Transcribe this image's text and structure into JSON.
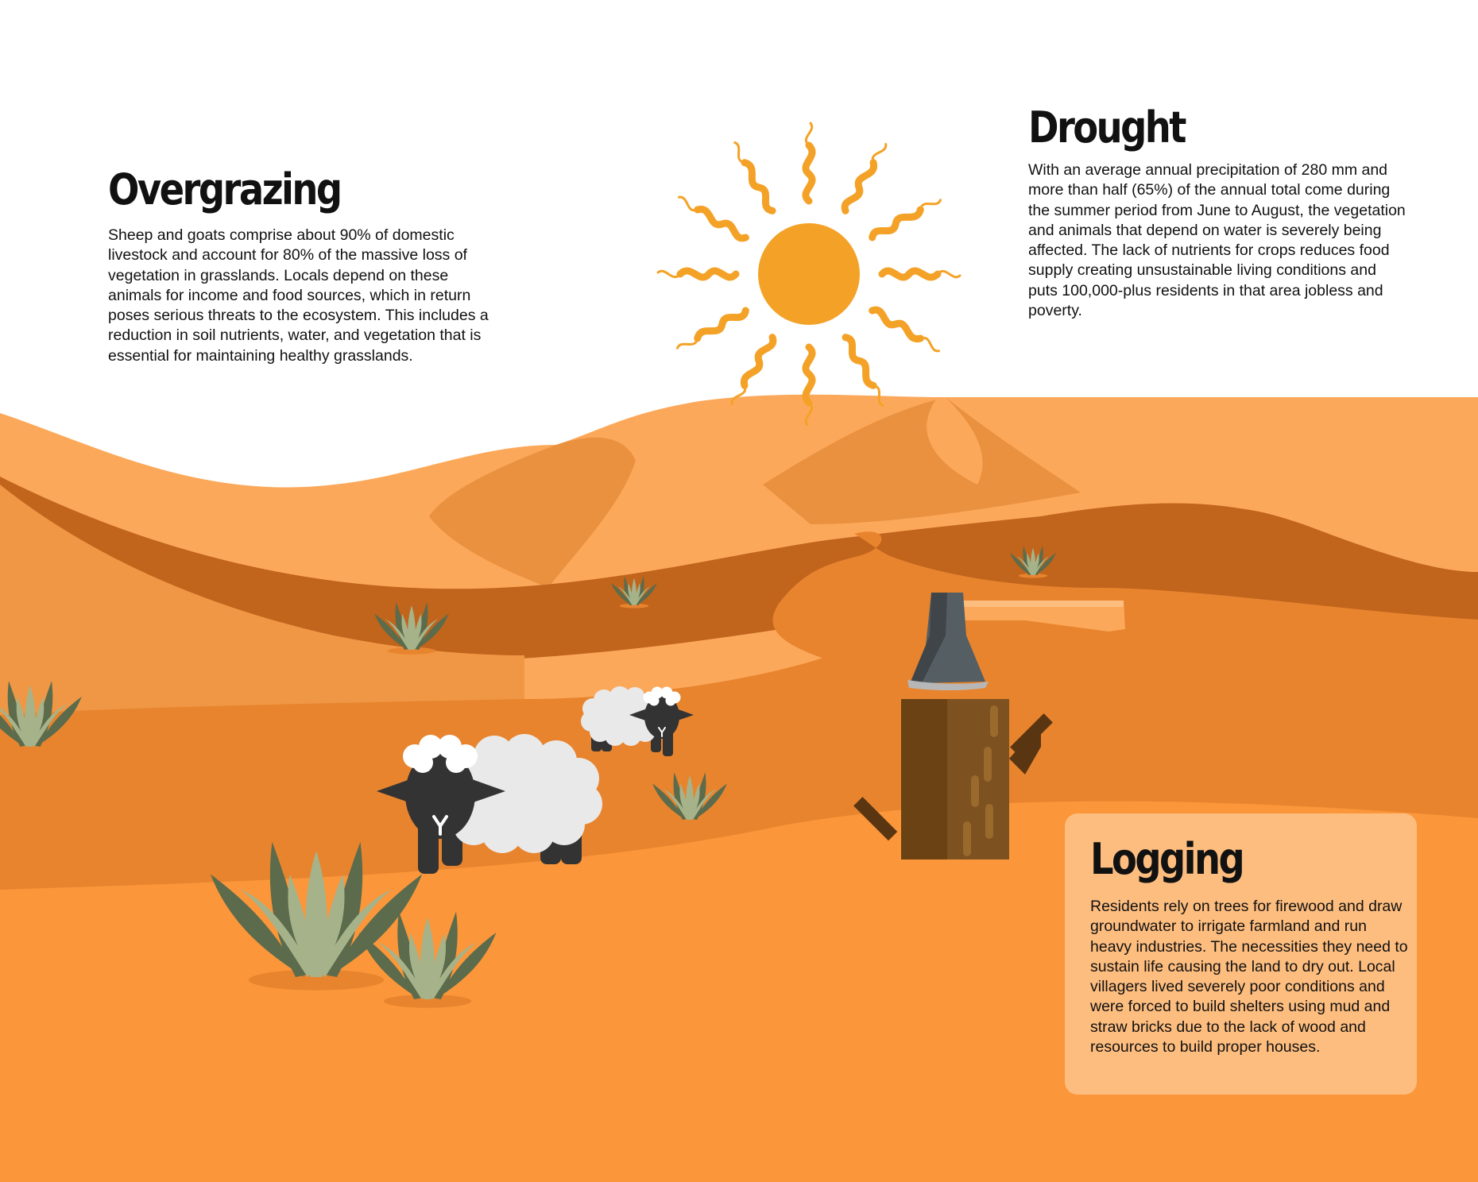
{
  "sections": {
    "overgrazing": {
      "title": "Overgrazing",
      "text": "Sheep and goats comprise about 90% of domestic livestock and account for 80% of the massive loss of vegetation in grasslands. Locals depend on these animals for income and food sources, which in return poses serious threats to the ecosystem. This includes a reduction in soil nutrients, water, and vegetation that is essential for maintaining healthy grasslands."
    },
    "drought": {
      "title": "Drought",
      "text": "With an average annual precipitation of 280 mm and more than half (65%) of the annual total come during the summer period from June to August, the vegetation and animals that depend on water is severely being affected. The lack of nutrients for crops reduces food supply creating unsustainable living conditions and puts 100,000-plus residents in that area jobless and poverty."
    },
    "logging": {
      "title": "Logging",
      "text": "Residents rely on trees for firewood and draw groundwater to irrigate farmland and run heavy industries. The necessities they need to sustain life causing the land to dry out. Local villagers lived severely poor conditions and were forced to build shelters using mud and straw bricks due to the lack of wood and resources to build proper houses."
    }
  },
  "icons": [
    "sun-icon",
    "sheep-icon",
    "axe-icon",
    "tree-stump-icon",
    "desert-plant-icon"
  ],
  "colors": {
    "sun": "#f4a227",
    "dune_light": "#fca85a",
    "dune_mid": "#e9913f",
    "dune_dark": "#c1641c",
    "sand": "#fb963a",
    "card": "#fdbd7f",
    "sheep_wool": "#e9e9e9",
    "sheep_face": "#333333",
    "plant_dark": "#5b6b4b",
    "plant_light": "#a6b38a"
  }
}
